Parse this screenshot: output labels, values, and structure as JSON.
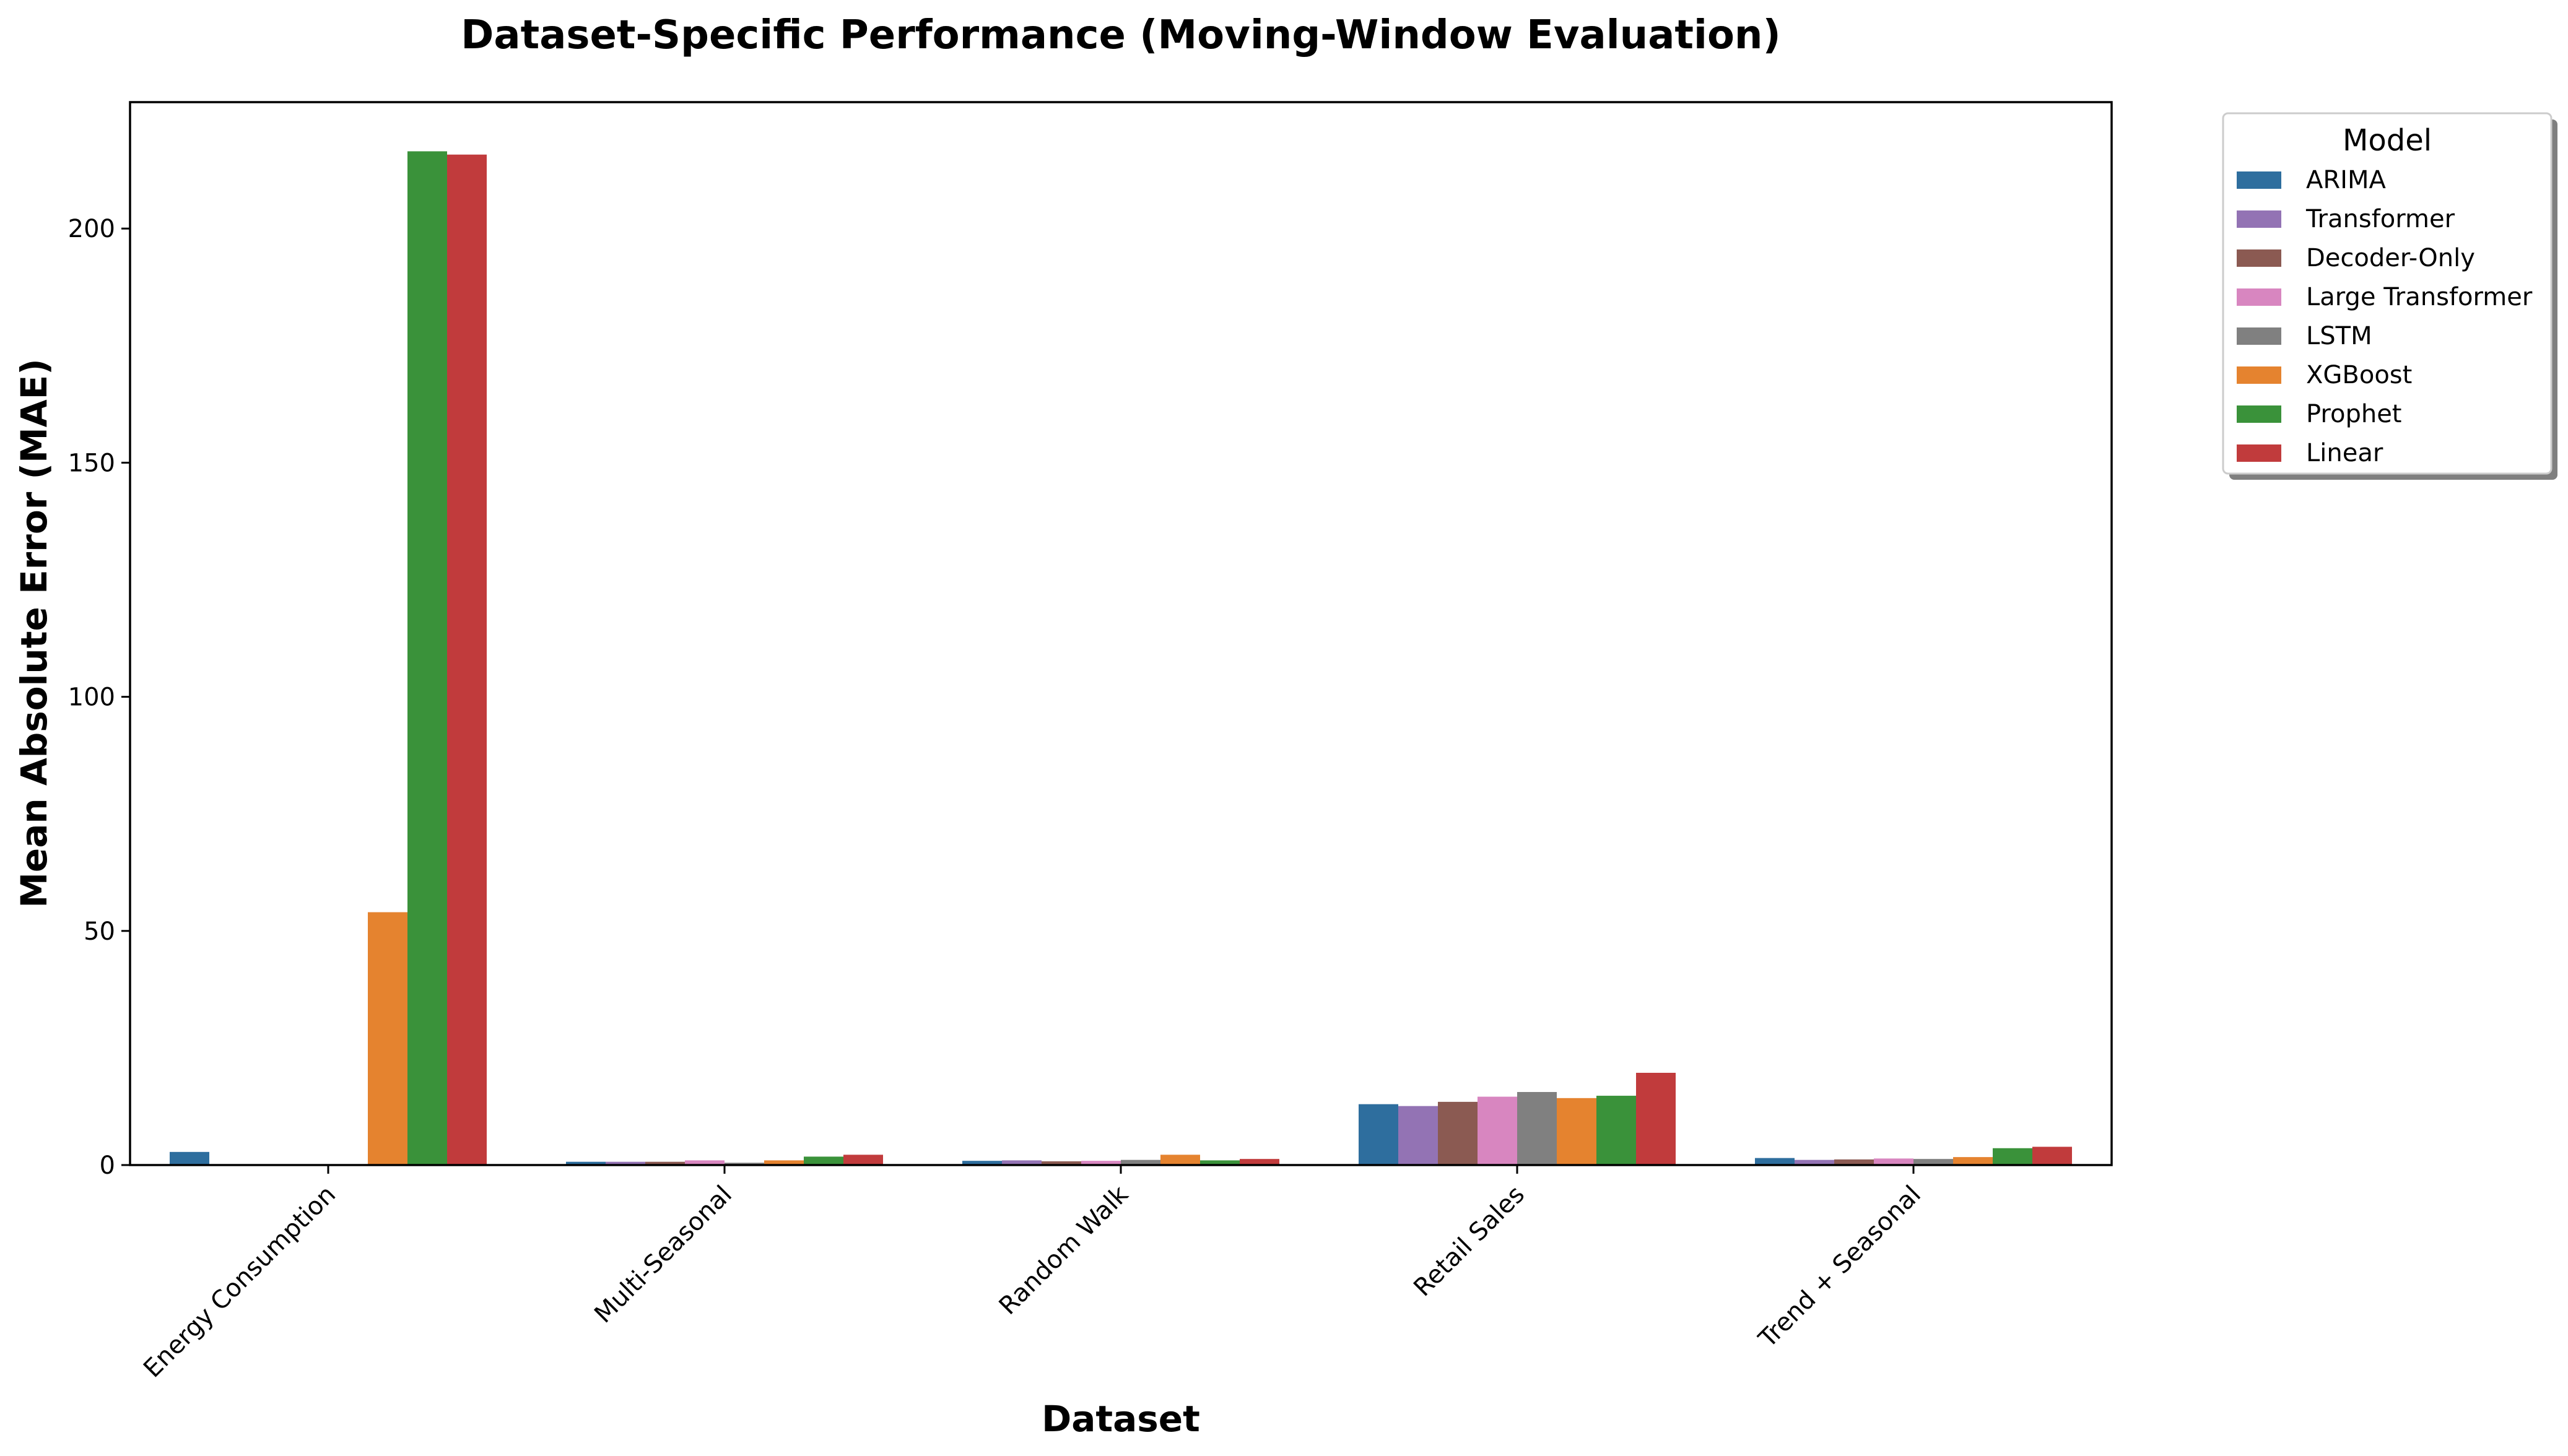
{
  "chart_data": {
    "type": "bar",
    "title": "Dataset-Specific Performance (Moving-Window Evaluation)",
    "xlabel": "Dataset",
    "ylabel": "Mean Absolute Error (MAE)",
    "ylim": [
      0,
      227
    ],
    "yticks": [
      "0",
      "50",
      "100",
      "150",
      "200"
    ],
    "categories": [
      "Energy Consumption",
      "Multi-Seasonal",
      "Random Walk",
      "Retail Sales",
      "Trend + Seasonal"
    ],
    "grid": false,
    "legend": {
      "title": "Model",
      "placement": "outside-top-right"
    },
    "series": [
      {
        "name": "ARIMA",
        "color": "#2e6e9e",
        "values": [
          2.8,
          0.7,
          0.9,
          13.0,
          1.5
        ]
      },
      {
        "name": "Transformer",
        "color": "#9373b4",
        "values": [
          0,
          0.7,
          1.0,
          12.6,
          1.1
        ]
      },
      {
        "name": "Decoder-Only",
        "color": "#8b5a52",
        "values": [
          0,
          0.7,
          0.8,
          13.5,
          1.2
        ]
      },
      {
        "name": "Large Transformer",
        "color": "#d886c0",
        "values": [
          0,
          1.0,
          0.9,
          14.6,
          1.4
        ]
      },
      {
        "name": "LSTM",
        "color": "#808080",
        "values": [
          0,
          0.5,
          1.1,
          15.6,
          1.3
        ]
      },
      {
        "name": "XGBoost",
        "color": "#e5832f",
        "values": [
          54.0,
          1.0,
          2.2,
          14.3,
          1.7
        ]
      },
      {
        "name": "Prophet",
        "color": "#3a923a",
        "values": [
          216.5,
          1.8,
          1.0,
          14.8,
          3.6
        ]
      },
      {
        "name": "Linear",
        "color": "#c13b3c",
        "values": [
          215.8,
          2.2,
          1.3,
          19.7,
          3.9
        ]
      }
    ]
  }
}
